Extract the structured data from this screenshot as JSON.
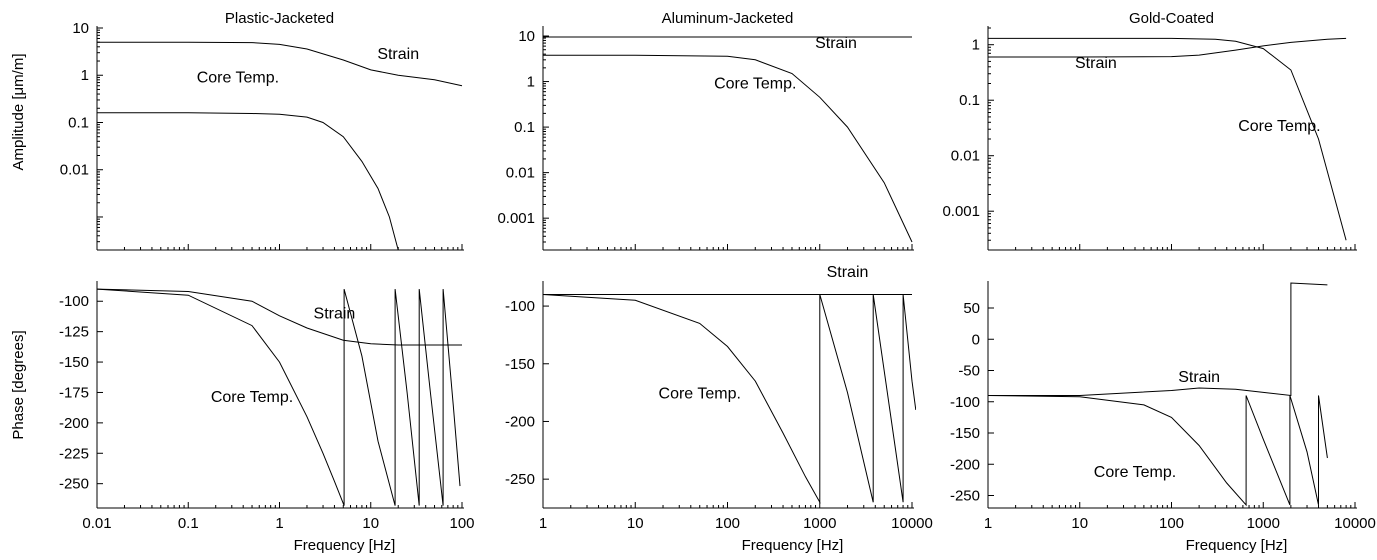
{
  "figure": {
    "ylabel_top": "Amplitude [μm/m]",
    "ylabel_bottom": "Phase [degrees]"
  },
  "chart_data": [
    {
      "type": "line",
      "title": "Plastic-Jacketed",
      "xlabel": "",
      "ylabel": "Amplitude [μm/m]",
      "xscale": "log",
      "yscale": "log",
      "xlim": [
        0.01,
        100
      ],
      "ylim": [
        0.0002,
        10
      ],
      "yticks": [
        0.01,
        0.1,
        1,
        10
      ],
      "ytick_labels": [
        "0.01",
        "0.1",
        "1",
        "10"
      ],
      "xticks": [],
      "xtick_labels": [],
      "series": [
        {
          "name": "Strain",
          "x": [
            0.01,
            0.1,
            0.5,
            1,
            2,
            5,
            10,
            20,
            50,
            100
          ],
          "y": [
            5.0,
            5.0,
            4.9,
            4.5,
            3.6,
            2.1,
            1.3,
            1.0,
            0.8,
            0.6
          ]
        },
        {
          "name": "Core Temp.",
          "x": [
            0.01,
            0.1,
            0.5,
            1,
            2,
            3,
            5,
            8,
            12,
            16,
            20
          ],
          "y": [
            0.16,
            0.16,
            0.155,
            0.15,
            0.13,
            0.1,
            0.05,
            0.015,
            0.004,
            0.001,
            0.0002
          ]
        }
      ],
      "annotations": [
        {
          "text": "Strain",
          "x": 20,
          "y": 2.2
        },
        {
          "text": "Core Temp.",
          "x": 0.35,
          "y": 0.7
        }
      ]
    },
    {
      "type": "line",
      "title": "Aluminum-Jacketed",
      "xlabel": "",
      "ylabel": "",
      "xscale": "log",
      "yscale": "log",
      "xlim": [
        1,
        10000
      ],
      "ylim": [
        0.0002,
        15
      ],
      "yticks": [
        0.001,
        0.01,
        0.1,
        1,
        10
      ],
      "ytick_labels": [
        "0.001",
        "0.01",
        "0.1",
        "1",
        "10"
      ],
      "xticks": [],
      "xtick_labels": [],
      "series": [
        {
          "name": "Strain",
          "x": [
            1,
            10,
            100,
            1000,
            10000
          ],
          "y": [
            9.5,
            9.5,
            9.5,
            9.5,
            9.5
          ]
        },
        {
          "name": "Core Temp.",
          "x": [
            1,
            10,
            100,
            200,
            500,
            1000,
            2000,
            5000,
            10000
          ],
          "y": [
            3.8,
            3.8,
            3.6,
            3.0,
            1.5,
            0.45,
            0.1,
            0.006,
            0.0003
          ]
        }
      ],
      "annotations": [
        {
          "text": "Strain",
          "x": 1500,
          "y": 5.5
        },
        {
          "text": "Core Temp.",
          "x": 200,
          "y": 0.7
        }
      ]
    },
    {
      "type": "line",
      "title": "Gold-Coated",
      "xlabel": "",
      "ylabel": "",
      "xscale": "log",
      "yscale": "log",
      "xlim": [
        1,
        10000
      ],
      "ylim": [
        0.0002,
        2
      ],
      "yticks": [
        0.001,
        0.01,
        0.1,
        1
      ],
      "ytick_labels": [
        "0.001",
        "0.01",
        "0.1",
        "1"
      ],
      "xticks": [],
      "xtick_labels": [],
      "series": [
        {
          "name": "Strain",
          "x": [
            1,
            10,
            100,
            200,
            500,
            1000,
            2000,
            5000,
            8000
          ],
          "y": [
            0.6,
            0.6,
            0.61,
            0.65,
            0.8,
            0.95,
            1.1,
            1.25,
            1.3
          ]
        },
        {
          "name": "Core Temp.",
          "x": [
            1,
            10,
            100,
            300,
            500,
            1000,
            2000,
            4000,
            8000
          ],
          "y": [
            1.3,
            1.3,
            1.3,
            1.25,
            1.15,
            0.85,
            0.35,
            0.02,
            0.0003
          ]
        }
      ],
      "annotations": [
        {
          "text": "Strain",
          "x": 15,
          "y": 0.38
        },
        {
          "text": "Core Temp.",
          "x": 1500,
          "y": 0.028
        }
      ]
    },
    {
      "type": "line",
      "title": "",
      "xlabel": "Frequency [Hz]",
      "ylabel": "Phase [degrees]",
      "xscale": "log",
      "yscale": "linear",
      "xlim": [
        0.01,
        100
      ],
      "ylim": [
        -270,
        -85
      ],
      "yticks": [
        -100,
        -125,
        -150,
        -175,
        -200,
        -225,
        -250
      ],
      "ytick_labels": [
        "-100",
        "-125",
        "-150",
        "-175",
        "-200",
        "-225",
        "-250"
      ],
      "xticks": [
        0.01,
        0.1,
        1,
        10,
        100
      ],
      "xtick_labels": [
        "0.01",
        "0.1",
        "1",
        "10",
        "100"
      ],
      "series": [
        {
          "name": "Strain",
          "x": [
            0.01,
            0.1,
            0.5,
            1,
            2,
            5,
            10,
            20,
            50,
            100
          ],
          "y": [
            -90,
            -92,
            -100,
            -112,
            -122,
            -132,
            -135,
            -136,
            -136,
            -136
          ]
        },
        {
          "name": "Core Temp.",
          "x": [
            0.01,
            0.1,
            0.5,
            1,
            2,
            3,
            4,
            5.1,
            5.1,
            8,
            12,
            18.5,
            18.5,
            25,
            34,
            34,
            45,
            62,
            62,
            80,
            95
          ],
          "y": [
            -90,
            -95,
            -120,
            -150,
            -195,
            -225,
            -248,
            -268,
            -90,
            -145,
            -215,
            -268,
            -90,
            -175,
            -268,
            -90,
            -175,
            -268,
            -90,
            -185,
            -252
          ]
        }
      ],
      "annotations": [
        {
          "text": "Strain",
          "x": 4,
          "y": -114
        },
        {
          "text": "Core Temp.",
          "x": 0.5,
          "y": -183
        }
      ]
    },
    {
      "type": "line",
      "title": "",
      "xlabel": "Frequency [Hz]",
      "ylabel": "",
      "xscale": "log",
      "yscale": "linear",
      "xlim": [
        1,
        10000
      ],
      "ylim": [
        -275,
        -80
      ],
      "yticks": [
        -100,
        -150,
        -200,
        -250
      ],
      "ytick_labels": [
        "-100",
        "-150",
        "-200",
        "-250"
      ],
      "xticks": [
        1,
        10,
        100,
        1000,
        10000
      ],
      "xtick_labels": [
        "1",
        "10",
        "100",
        "1000",
        "10000"
      ],
      "series": [
        {
          "name": "Strain",
          "x": [
            1,
            10,
            100,
            1000,
            10000
          ],
          "y": [
            -90,
            -90,
            -90,
            -90,
            -90
          ]
        },
        {
          "name": "Core Temp.",
          "x": [
            1,
            10,
            50,
            100,
            200,
            400,
            700,
            1000,
            1000,
            2000,
            3800,
            3800,
            6000,
            8000,
            8000,
            10000,
            11000
          ],
          "y": [
            -90,
            -95,
            -115,
            -135,
            -165,
            -210,
            -248,
            -270,
            -90,
            -175,
            -270,
            -90,
            -200,
            -270,
            -90,
            -165,
            -190
          ]
        }
      ],
      "annotations": [
        {
          "text": "Strain",
          "x": 2000,
          "y": -75
        },
        {
          "text": "Core Temp.",
          "x": 50,
          "y": -180
        }
      ]
    },
    {
      "type": "line",
      "title": "",
      "xlabel": "Frequency [Hz]",
      "ylabel": "",
      "xscale": "log",
      "yscale": "linear",
      "xlim": [
        1,
        10000
      ],
      "ylim": [
        -270,
        90
      ],
      "yticks": [
        50,
        0,
        -50,
        -100,
        -150,
        -200,
        -250
      ],
      "ytick_labels": [
        "50",
        "0",
        "-50",
        "-100",
        "-150",
        "-200",
        "-250"
      ],
      "xticks": [
        1,
        10,
        100,
        1000,
        10000
      ],
      "xtick_labels": [
        "1",
        "10",
        "100",
        "1000",
        "10000"
      ],
      "series": [
        {
          "name": "Strain",
          "x": [
            1,
            10,
            100,
            200,
            500,
            1000,
            2000,
            2000,
            5000
          ],
          "y": [
            -90,
            -90,
            -82,
            -78,
            -80,
            -85,
            -90,
            90,
            87
          ]
        },
        {
          "name": "Core Temp.",
          "x": [
            1,
            10,
            50,
            100,
            200,
            400,
            650,
            650,
            1000,
            1950,
            1950,
            3000,
            4000,
            4000,
            5000
          ],
          "y": [
            -90,
            -92,
            -105,
            -125,
            -170,
            -230,
            -265,
            -90,
            -160,
            -265,
            -90,
            -180,
            -265,
            -90,
            -190
          ]
        }
      ],
      "annotations": [
        {
          "text": "Strain",
          "x": 200,
          "y": -68
        },
        {
          "text": "Core Temp.",
          "x": 40,
          "y": -220
        }
      ]
    }
  ]
}
